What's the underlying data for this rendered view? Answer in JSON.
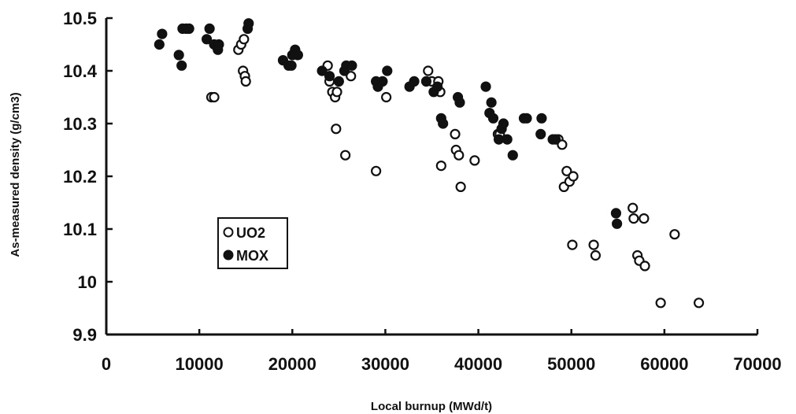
{
  "chart_data": {
    "type": "scatter",
    "title": "",
    "xlabel": "Local burnup (MWd/t)",
    "ylabel": "As-measured density (g/cm3)",
    "xlim": [
      0,
      70000
    ],
    "ylim": [
      9.9,
      10.5
    ],
    "x_ticks": [
      "0",
      "10000",
      "20000",
      "30000",
      "40000",
      "50000",
      "60000",
      "70000"
    ],
    "y_ticks": [
      "9.9",
      "10",
      "10.1",
      "10.2",
      "10.3",
      "10.4",
      "10.5"
    ],
    "grid": false,
    "legend_position": "lower-left",
    "series": [
      {
        "name": "UO2",
        "marker": "open-circle",
        "points": [
          [
            11300,
            10.35
          ],
          [
            11600,
            10.35
          ],
          [
            14200,
            10.44
          ],
          [
            14500,
            10.45
          ],
          [
            14800,
            10.46
          ],
          [
            14700,
            10.4
          ],
          [
            14900,
            10.39
          ],
          [
            15000,
            10.38
          ],
          [
            23800,
            10.41
          ],
          [
            24000,
            10.38
          ],
          [
            24300,
            10.36
          ],
          [
            24600,
            10.35
          ],
          [
            24800,
            10.36
          ],
          [
            24700,
            10.29
          ],
          [
            25700,
            10.24
          ],
          [
            26300,
            10.39
          ],
          [
            29000,
            10.21
          ],
          [
            30100,
            10.35
          ],
          [
            34600,
            10.4
          ],
          [
            35000,
            10.38
          ],
          [
            35700,
            10.38
          ],
          [
            35900,
            10.36
          ],
          [
            36000,
            10.22
          ],
          [
            37500,
            10.28
          ],
          [
            37600,
            10.25
          ],
          [
            37900,
            10.24
          ],
          [
            38100,
            10.18
          ],
          [
            39600,
            10.23
          ],
          [
            42100,
            10.28
          ],
          [
            42300,
            10.28
          ],
          [
            48600,
            10.27
          ],
          [
            49000,
            10.26
          ],
          [
            49200,
            10.18
          ],
          [
            49500,
            10.21
          ],
          [
            49800,
            10.19
          ],
          [
            50200,
            10.2
          ],
          [
            50100,
            10.07
          ],
          [
            52400,
            10.07
          ],
          [
            52600,
            10.05
          ],
          [
            56600,
            10.14
          ],
          [
            56700,
            10.12
          ],
          [
            57100,
            10.05
          ],
          [
            57300,
            10.04
          ],
          [
            57800,
            10.12
          ],
          [
            57900,
            10.03
          ],
          [
            59600,
            9.96
          ],
          [
            61100,
            10.09
          ],
          [
            63700,
            9.96
          ]
        ]
      },
      {
        "name": "MOX",
        "marker": "filled-circle",
        "points": [
          [
            5700,
            10.45
          ],
          [
            6000,
            10.47
          ],
          [
            7800,
            10.43
          ],
          [
            8100,
            10.41
          ],
          [
            8200,
            10.48
          ],
          [
            8600,
            10.48
          ],
          [
            8900,
            10.48
          ],
          [
            10800,
            10.46
          ],
          [
            11100,
            10.48
          ],
          [
            11600,
            10.45
          ],
          [
            12000,
            10.44
          ],
          [
            12100,
            10.45
          ],
          [
            15200,
            10.48
          ],
          [
            15300,
            10.49
          ],
          [
            19000,
            10.42
          ],
          [
            19600,
            10.41
          ],
          [
            19900,
            10.41
          ],
          [
            20000,
            10.43
          ],
          [
            20300,
            10.44
          ],
          [
            20600,
            10.43
          ],
          [
            23200,
            10.4
          ],
          [
            24000,
            10.39
          ],
          [
            25000,
            10.38
          ],
          [
            25600,
            10.4
          ],
          [
            25800,
            10.41
          ],
          [
            26400,
            10.41
          ],
          [
            29000,
            10.38
          ],
          [
            29200,
            10.37
          ],
          [
            29700,
            10.38
          ],
          [
            30200,
            10.4
          ],
          [
            32600,
            10.37
          ],
          [
            33100,
            10.38
          ],
          [
            34400,
            10.38
          ],
          [
            35200,
            10.36
          ],
          [
            35600,
            10.37
          ],
          [
            36000,
            10.31
          ],
          [
            36200,
            10.3
          ],
          [
            37800,
            10.35
          ],
          [
            38000,
            10.34
          ],
          [
            40800,
            10.37
          ],
          [
            41200,
            10.32
          ],
          [
            41400,
            10.34
          ],
          [
            41600,
            10.31
          ],
          [
            42200,
            10.27
          ],
          [
            42500,
            10.29
          ],
          [
            42700,
            10.3
          ],
          [
            43100,
            10.27
          ],
          [
            43700,
            10.24
          ],
          [
            44900,
            10.31
          ],
          [
            45200,
            10.31
          ],
          [
            46700,
            10.28
          ],
          [
            46800,
            10.31
          ],
          [
            48000,
            10.27
          ],
          [
            48300,
            10.27
          ],
          [
            54800,
            10.13
          ],
          [
            54900,
            10.11
          ]
        ]
      }
    ]
  }
}
